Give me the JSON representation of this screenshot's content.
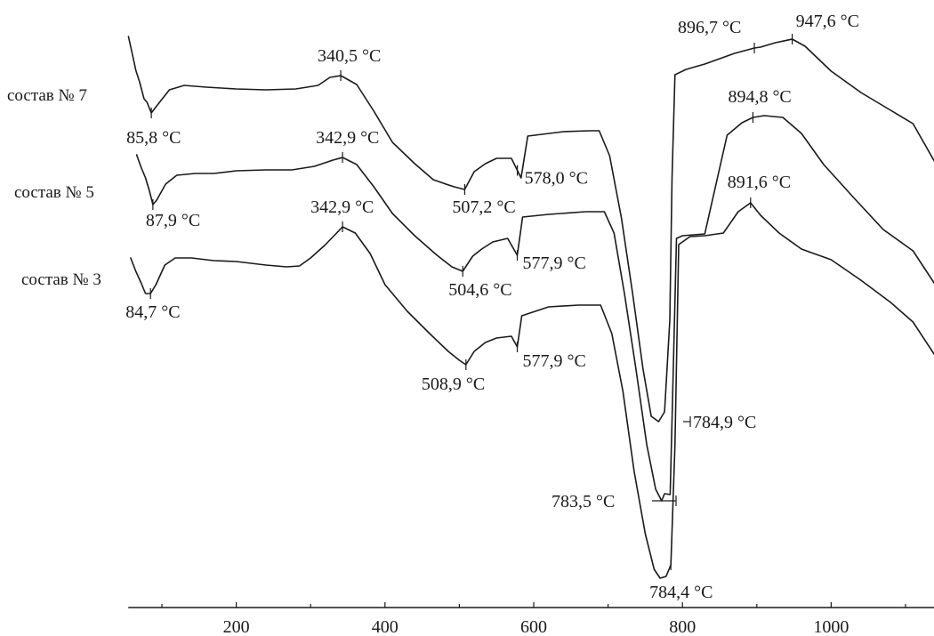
{
  "chart_data": {
    "type": "line",
    "x_ticks": [
      200,
      400,
      600,
      800,
      1000
    ],
    "xlim": [
      50,
      1140
    ],
    "series": [
      {
        "name": "состав № 7",
        "points": [
          [
            55,
            41
          ],
          [
            60,
            60
          ],
          [
            65,
            79
          ],
          [
            70,
            92
          ],
          [
            76,
            111
          ],
          [
            80,
            115
          ],
          [
            85.8,
            127
          ],
          [
            95,
            117
          ],
          [
            110,
            101
          ],
          [
            130,
            96
          ],
          [
            160,
            98
          ],
          [
            200,
            100
          ],
          [
            240,
            101
          ],
          [
            280,
            100
          ],
          [
            310,
            96
          ],
          [
            326,
            87
          ],
          [
            340.5,
            85
          ],
          [
            362,
            95
          ],
          [
            385,
            125
          ],
          [
            410,
            160
          ],
          [
            440,
            184
          ],
          [
            465,
            202
          ],
          [
            482,
            207
          ],
          [
            493,
            210
          ],
          [
            507.2,
            213
          ],
          [
            520,
            193
          ],
          [
            535,
            184
          ],
          [
            550,
            178
          ],
          [
            570,
            178
          ],
          [
            583,
            200
          ],
          [
            592,
            153
          ],
          [
            640,
            148
          ],
          [
            675,
            147
          ],
          [
            688,
            147
          ],
          [
            702,
            175
          ],
          [
            718,
            245
          ],
          [
            733,
            330
          ],
          [
            747,
            415
          ],
          [
            758,
            468
          ],
          [
            768,
            474
          ],
          [
            776,
            463
          ],
          [
            783,
            360
          ],
          [
            786,
            200
          ],
          [
            790,
            84
          ],
          [
            805,
            78
          ],
          [
            830,
            72
          ],
          [
            870,
            60
          ],
          [
            896.7,
            54
          ],
          [
            905,
            53
          ],
          [
            925,
            48
          ],
          [
            947.6,
            44
          ],
          [
            965,
            52
          ],
          [
            1000,
            80
          ],
          [
            1040,
            104
          ],
          [
            1080,
            124
          ],
          [
            1110,
            139
          ],
          [
            1140,
            183
          ]
        ],
        "annotations": [
          {
            "label": "85,8 °C",
            "x": 85.8
          },
          {
            "label": "340,5 °C",
            "x": 340.5
          },
          {
            "label": "507,2 °C",
            "x": 507.2
          },
          {
            "label": "578,0 °C",
            "x": 578.0
          },
          {
            "label": "896,7 °C",
            "x": 896.7
          },
          {
            "label": "947,6 °C",
            "x": 947.6
          },
          {
            "label": "784,9 °C",
            "x": 784.9
          }
        ]
      },
      {
        "name": "состав № 5",
        "points": [
          [
            66,
            174
          ],
          [
            72,
            188
          ],
          [
            78,
            200
          ],
          [
            83,
            214
          ],
          [
            87.9,
            230
          ],
          [
            93,
            225
          ],
          [
            105,
            207
          ],
          [
            120,
            197
          ],
          [
            145,
            195
          ],
          [
            170,
            195
          ],
          [
            200,
            192
          ],
          [
            240,
            191
          ],
          [
            275,
            191
          ],
          [
            305,
            187
          ],
          [
            330,
            180
          ],
          [
            342.9,
            177
          ],
          [
            362,
            185
          ],
          [
            385,
            210
          ],
          [
            410,
            240
          ],
          [
            440,
            265
          ],
          [
            470,
            287
          ],
          [
            490,
            300
          ],
          [
            504.6,
            305
          ],
          [
            518,
            288
          ],
          [
            530,
            280
          ],
          [
            545,
            272
          ],
          [
            565,
            268
          ],
          [
            577.9,
            287
          ],
          [
            585,
            244
          ],
          [
            620,
            241
          ],
          [
            670,
            238
          ],
          [
            695,
            238
          ],
          [
            708,
            262
          ],
          [
            722,
            330
          ],
          [
            737,
            412
          ],
          [
            752,
            500
          ],
          [
            764,
            550
          ],
          [
            772,
            563
          ],
          [
            776,
            555
          ],
          [
            783.5,
            556
          ],
          [
            787,
            440
          ],
          [
            792,
            268
          ],
          [
            800,
            265
          ],
          [
            830,
            263
          ],
          [
            860,
            152
          ],
          [
            880,
            138
          ],
          [
            894.8,
            132
          ],
          [
            910,
            130
          ],
          [
            935,
            132
          ],
          [
            960,
            150
          ],
          [
            990,
            185
          ],
          [
            1030,
            222
          ],
          [
            1070,
            258
          ],
          [
            1110,
            282
          ],
          [
            1140,
            320
          ]
        ],
        "annotations": [
          {
            "label": "87,9 °C",
            "x": 87.9
          },
          {
            "label": "342,9 °C",
            "x": 342.9
          },
          {
            "label": "504,6 °C",
            "x": 504.6
          },
          {
            "label": "577,9 °C",
            "x": 577.9
          },
          {
            "label": "894,8 °C",
            "x": 894.8
          },
          {
            "label": "783,5 °C",
            "x": 783.5
          }
        ]
      },
      {
        "name": "состав № 3",
        "points": [
          [
            58,
            290
          ],
          [
            65,
            305
          ],
          [
            72,
            318
          ],
          [
            78,
            330
          ],
          [
            84.7,
            330
          ],
          [
            92,
            320
          ],
          [
            104,
            298
          ],
          [
            118,
            290
          ],
          [
            140,
            290
          ],
          [
            170,
            293
          ],
          [
            200,
            294
          ],
          [
            240,
            298
          ],
          [
            268,
            300
          ],
          [
            285,
            299
          ],
          [
            300,
            290
          ],
          [
            320,
            275
          ],
          [
            342.9,
            255
          ],
          [
            360,
            262
          ],
          [
            380,
            285
          ],
          [
            400,
            320
          ],
          [
            430,
            350
          ],
          [
            460,
            375
          ],
          [
            485,
            395
          ],
          [
            500,
            405
          ],
          [
            508.9,
            410
          ],
          [
            520,
            395
          ],
          [
            535,
            385
          ],
          [
            550,
            380
          ],
          [
            570,
            378
          ],
          [
            577.9,
            390
          ],
          [
            584,
            355
          ],
          [
            620,
            345
          ],
          [
            660,
            343
          ],
          [
            690,
            343
          ],
          [
            705,
            375
          ],
          [
            720,
            440
          ],
          [
            735,
            530
          ],
          [
            750,
            600
          ],
          [
            762,
            640
          ],
          [
            770,
            650
          ],
          [
            778,
            648
          ],
          [
            784.4,
            635
          ],
          [
            790,
            500
          ],
          [
            795,
            275
          ],
          [
            810,
            266
          ],
          [
            830,
            265
          ],
          [
            855,
            262
          ],
          [
            875,
            238
          ],
          [
            891.6,
            228
          ],
          [
            905,
            242
          ],
          [
            930,
            262
          ],
          [
            960,
            280
          ],
          [
            1000,
            292
          ],
          [
            1040,
            315
          ],
          [
            1080,
            340
          ],
          [
            1110,
            362
          ],
          [
            1140,
            400
          ]
        ],
        "annotations": [
          {
            "label": "84,7 °C",
            "x": 84.7
          },
          {
            "label": "342,9 °C",
            "x": 342.9
          },
          {
            "label": "508,9 °C",
            "x": 508.9
          },
          {
            "label": "577,9 °C",
            "x": 577.9
          },
          {
            "label": "891,6 °C",
            "x": 891.6
          },
          {
            "label": "784,4 °C",
            "x": 784.4
          }
        ]
      }
    ]
  }
}
